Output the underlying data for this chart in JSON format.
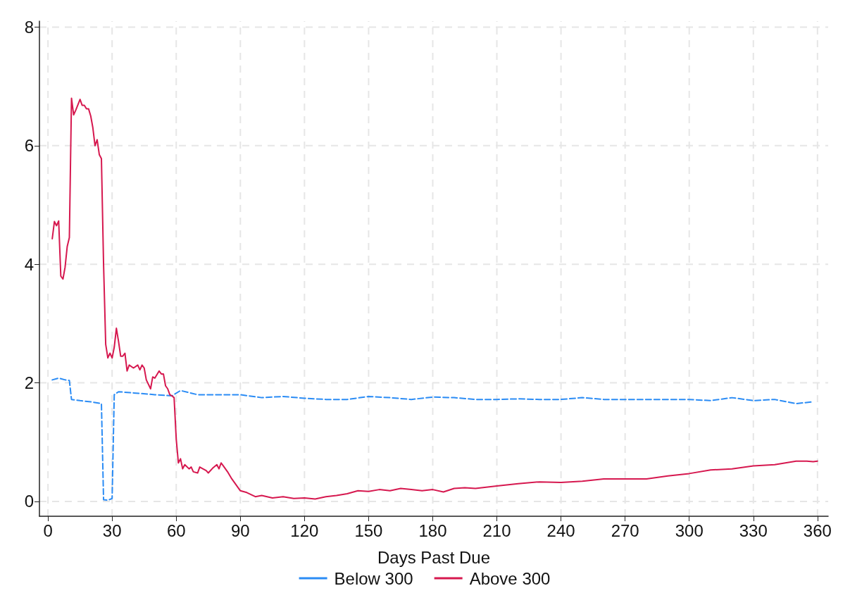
{
  "chart_data": {
    "type": "line",
    "xlabel": "Days Past Due",
    "xlim": [
      -4,
      365
    ],
    "ylim": [
      -0.25,
      8.1
    ],
    "xticks": [
      0,
      30,
      60,
      90,
      120,
      150,
      180,
      210,
      240,
      270,
      300,
      330,
      360
    ],
    "yticks": [
      0,
      2,
      4,
      6,
      8
    ],
    "grid": true,
    "legend": "bottom",
    "marker": "none",
    "series": [
      {
        "name": "Below 300",
        "color": "#2b8cf5",
        "line_style": "dashed",
        "x": [
          2,
          5,
          8,
          10,
          11,
          15,
          20,
          25,
          26,
          28,
          30,
          31,
          33,
          40,
          50,
          58,
          62,
          70,
          80,
          90,
          100,
          110,
          120,
          130,
          140,
          150,
          160,
          170,
          180,
          190,
          200,
          210,
          220,
          230,
          240,
          250,
          260,
          270,
          280,
          290,
          300,
          310,
          320,
          330,
          340,
          350,
          358
        ],
        "values": [
          2.05,
          2.08,
          2.05,
          2.04,
          1.72,
          1.7,
          1.68,
          1.65,
          0.03,
          0.02,
          0.05,
          1.8,
          1.85,
          1.83,
          1.8,
          1.78,
          1.87,
          1.8,
          1.8,
          1.8,
          1.75,
          1.77,
          1.74,
          1.72,
          1.72,
          1.77,
          1.75,
          1.72,
          1.76,
          1.75,
          1.72,
          1.72,
          1.73,
          1.72,
          1.72,
          1.75,
          1.72,
          1.72,
          1.72,
          1.72,
          1.72,
          1.7,
          1.75,
          1.7,
          1.72,
          1.65,
          1.68
        ]
      },
      {
        "name": "Above 300",
        "color": "#d6184f",
        "line_style": "solid",
        "x": [
          2,
          3,
          4,
          5,
          6,
          7,
          8,
          9,
          10,
          11,
          12,
          13,
          15,
          16,
          17,
          18,
          19,
          20,
          21,
          22,
          23,
          24,
          25,
          26,
          27,
          28,
          29,
          30,
          31,
          32,
          33,
          34,
          35,
          36,
          37,
          38,
          40,
          42,
          43,
          44,
          45,
          46,
          48,
          49,
          50,
          52,
          53,
          54,
          55,
          56,
          57,
          58,
          59,
          60,
          61,
          62,
          63,
          64,
          66,
          67,
          68,
          70,
          71,
          72,
          74,
          75,
          77,
          79,
          80,
          81,
          82,
          84,
          86,
          88,
          90,
          93,
          97,
          100,
          105,
          110,
          115,
          120,
          125,
          130,
          135,
          140,
          145,
          150,
          155,
          160,
          165,
          170,
          175,
          180,
          185,
          190,
          195,
          200,
          210,
          220,
          230,
          240,
          250,
          260,
          270,
          280,
          290,
          300,
          310,
          320,
          330,
          340,
          350,
          355,
          358,
          360
        ],
        "values": [
          4.43,
          4.72,
          4.65,
          4.73,
          3.8,
          3.75,
          3.95,
          4.3,
          4.45,
          6.8,
          6.52,
          6.6,
          6.78,
          6.68,
          6.68,
          6.62,
          6.62,
          6.5,
          6.3,
          6.0,
          6.1,
          5.85,
          5.78,
          4.0,
          2.65,
          2.42,
          2.5,
          2.42,
          2.6,
          2.92,
          2.7,
          2.45,
          2.45,
          2.5,
          2.2,
          2.3,
          2.25,
          2.3,
          2.22,
          2.3,
          2.25,
          2.05,
          1.9,
          2.1,
          2.08,
          2.2,
          2.15,
          2.15,
          1.95,
          1.9,
          1.8,
          1.78,
          1.75,
          1.05,
          0.65,
          0.72,
          0.55,
          0.62,
          0.55,
          0.58,
          0.5,
          0.48,
          0.58,
          0.56,
          0.52,
          0.48,
          0.56,
          0.62,
          0.55,
          0.65,
          0.6,
          0.5,
          0.38,
          0.28,
          0.18,
          0.15,
          0.08,
          0.1,
          0.06,
          0.08,
          0.05,
          0.06,
          0.04,
          0.08,
          0.1,
          0.13,
          0.18,
          0.17,
          0.2,
          0.18,
          0.22,
          0.2,
          0.18,
          0.2,
          0.16,
          0.22,
          0.23,
          0.22,
          0.26,
          0.3,
          0.33,
          0.32,
          0.34,
          0.38,
          0.38,
          0.38,
          0.43,
          0.47,
          0.53,
          0.55,
          0.6,
          0.62,
          0.68,
          0.68,
          0.67,
          0.68
        ]
      }
    ]
  }
}
